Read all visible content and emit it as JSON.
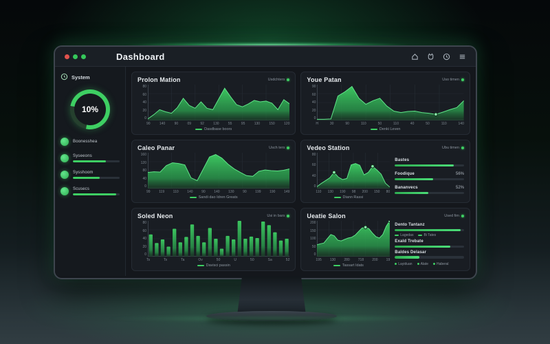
{
  "window": {
    "title": "Dashboard",
    "traffic_lights": [
      "red",
      "green",
      "green"
    ],
    "toolbar_icons": [
      "home-icon",
      "notifications-icon",
      "clock-icon",
      "menu-icon"
    ]
  },
  "colors": {
    "accent": "#3ecf63",
    "accent_bright": "#6ff09a",
    "monitor_bg": "#14171c",
    "panel_bg": "#191d23",
    "titlebar_bg": "#1a1f25",
    "text_primary": "#e9edf0",
    "text_muted": "#8b949e",
    "grid": "#262d35",
    "bar_track": "#2a3139",
    "dot_red": "#e0524d"
  },
  "sidebar": {
    "system_label": "System",
    "gauge": {
      "value": "10%",
      "percent": 75
    },
    "items": [
      {
        "label": "Boonesshea",
        "bar_percent": null
      },
      {
        "label": "Syseeons",
        "bar_percent": 70
      },
      {
        "label": "Sysshoom",
        "bar_percent": 58
      },
      {
        "label": "Scusecs",
        "bar_percent": 92
      }
    ]
  },
  "chart_data": [
    {
      "type": "area",
      "title": "Prolon Mation",
      "status_label": "Usdchters",
      "legend": "Dasdbase boors",
      "ylim": [
        0,
        100
      ],
      "y_labels": [
        "80",
        "60",
        "40",
        "20",
        "0"
      ],
      "x_labels": [
        "90",
        "140",
        "90",
        "09",
        "92",
        "130",
        "55",
        "95",
        "130",
        "150",
        "120"
      ],
      "values": [
        4,
        16,
        30,
        24,
        20,
        36,
        62,
        42,
        34,
        52,
        34,
        30,
        60,
        90,
        66,
        44,
        38,
        46,
        56,
        52,
        54,
        48,
        30,
        58,
        46
      ],
      "markers": [],
      "grid": true
    },
    {
      "type": "area",
      "title": "Youe Patan",
      "status_label": "Uso timen",
      "legend": "Denki Leven",
      "ylim": [
        0,
        100
      ],
      "y_labels": [
        "90",
        "60",
        "40",
        "20",
        "0"
      ],
      "x_labels": [
        "H",
        "30",
        "90",
        "110",
        "50",
        "110",
        "40",
        "50",
        "110",
        "140"
      ],
      "values": [
        3,
        3,
        4,
        68,
        80,
        95,
        62,
        45,
        55,
        62,
        40,
        26,
        22,
        25,
        26,
        22,
        20,
        17,
        23,
        30,
        36,
        55
      ],
      "markers": [
        17
      ],
      "grid": true
    },
    {
      "type": "area",
      "title": "Caleo Panar",
      "status_label": "Usch ters",
      "legend": "Sandi dao Idren Greats",
      "ylim": [
        0,
        100
      ],
      "y_labels": [
        "160",
        "120",
        "80",
        "40",
        "0"
      ],
      "x_labels": [
        "99",
        "119",
        "110",
        "140",
        "90",
        "140",
        "130",
        "90",
        "199",
        "190",
        "149"
      ],
      "values": [
        45,
        47,
        46,
        64,
        72,
        70,
        66,
        30,
        22,
        55,
        88,
        95,
        85,
        68,
        55,
        45,
        36,
        34,
        48,
        52,
        50,
        49,
        51,
        55
      ],
      "markers": [],
      "grid": true
    },
    {
      "type": "area",
      "title": "Vedeo Station",
      "status_label": "Ubu timen",
      "legend": "Diann Rassi",
      "ylim": [
        0,
        100
      ],
      "y_labels": [
        "80",
        "60",
        "40",
        "0"
      ],
      "x_labels": [
        "110",
        "130",
        "190",
        "98",
        "200",
        "150",
        "80"
      ],
      "values": [
        5,
        14,
        22,
        30,
        45,
        32,
        25,
        28,
        66,
        70,
        65,
        38,
        45,
        62,
        52,
        40,
        15,
        4
      ],
      "markers": [
        4,
        13
      ],
      "grid": true,
      "stats": [
        {
          "label": "Bastes",
          "value": "",
          "percent": 85
        },
        {
          "label": "Foodique",
          "value": "56%",
          "percent": 55
        },
        {
          "label": "Bananvecs",
          "value": "52%",
          "percent": 48
        }
      ]
    },
    {
      "type": "bar",
      "title": "Soled Neon",
      "status_label": "Usi in bars",
      "legend": "Davisci passin",
      "ylim": [
        0,
        100
      ],
      "y_labels": [
        "80",
        "60",
        "40",
        "20",
        "0"
      ],
      "x_labels": [
        "Ts",
        "Ts",
        "Ta",
        "Ov",
        "50",
        "U",
        "50",
        "Sa",
        "52"
      ],
      "values": [
        62,
        38,
        48,
        28,
        78,
        40,
        55,
        90,
        58,
        40,
        80,
        50,
        22,
        58,
        48,
        100,
        50,
        56,
        52,
        98,
        88,
        68,
        45,
        50
      ],
      "markers": [],
      "grid": false
    },
    {
      "type": "area",
      "title": "Ueatie Salon",
      "status_label": "Used fim",
      "legend": "Tassart Idats",
      "ylim": [
        0,
        200
      ],
      "y_labels": [
        "200",
        "150",
        "100",
        "50",
        "0"
      ],
      "x_labels": [
        "195",
        "130",
        "280",
        "718",
        "200",
        "19"
      ],
      "values": [
        33,
        36,
        38,
        50,
        62,
        58,
        46,
        44,
        48,
        52,
        54,
        60,
        70,
        80,
        82,
        78,
        66,
        56,
        52,
        62,
        85,
        100
      ],
      "markers": [
        14,
        21
      ],
      "grid": true,
      "stats": [
        {
          "label": "Dento Tantanz",
          "value": "",
          "percent": 95,
          "sub_legend": [
            "Lagedas",
            "Bi Tates"
          ]
        },
        {
          "label": "Exald Trebate",
          "value": "",
          "percent": 80
        },
        {
          "label": "Baldes Delasar",
          "value": "",
          "percent": 35
        }
      ],
      "footer_legend": [
        "Layiduan",
        "Alate",
        "Haberal"
      ]
    }
  ]
}
